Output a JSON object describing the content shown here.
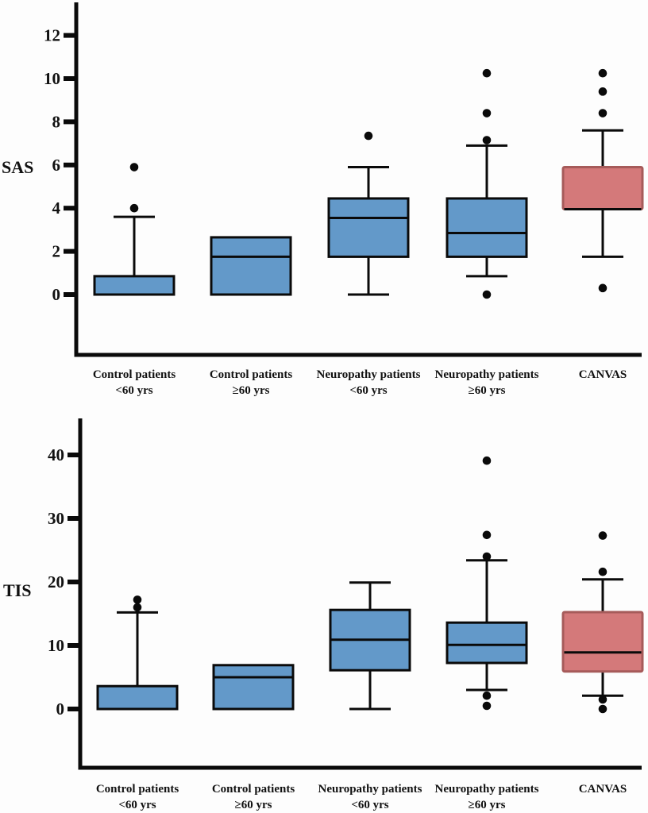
{
  "colors": {
    "control_fill": "#6399c9",
    "canvas_fill": "#d4797a",
    "canvas_stroke": "#a65b5a",
    "line": "#0a0a0a"
  },
  "chart_data": [
    {
      "type": "boxplot",
      "title": "",
      "ylabel": "SAS",
      "xlabel": "",
      "ylim": [
        -2.8,
        13
      ],
      "yticks": [
        0,
        2,
        4,
        6,
        8,
        10,
        12
      ],
      "grid": false,
      "legend": "none",
      "categories": [
        {
          "line1": "Control patients",
          "line2": "<60 yrs"
        },
        {
          "line1": "Control patients",
          "line2": "≥60 yrs"
        },
        {
          "line1": "Neuropathy patients",
          "line2": "<60 yrs"
        },
        {
          "line1": "Neuropathy patients",
          "line2": "≥60 yrs"
        },
        {
          "line1": "CANVAS",
          "line2": ""
        }
      ],
      "series": [
        {
          "name": "Control patients <60 yrs",
          "color": "blue",
          "q1": 0,
          "median": 0,
          "q3": 0.85,
          "whisker_low": null,
          "whisker_high": 3.6,
          "outliers": [
            4.0,
            5.9
          ]
        },
        {
          "name": "Control patients ≥60 yrs",
          "color": "blue",
          "q1": 0,
          "median": 1.75,
          "q3": 2.65,
          "whisker_low": null,
          "whisker_high": null,
          "outliers": []
        },
        {
          "name": "Neuropathy patients <60 yrs",
          "color": "blue",
          "q1": 1.75,
          "median": 3.55,
          "q3": 4.45,
          "whisker_low": 0,
          "whisker_high": 5.9,
          "outliers": [
            7.35
          ]
        },
        {
          "name": "Neuropathy patients ≥60 yrs",
          "color": "blue",
          "q1": 1.75,
          "median": 2.85,
          "q3": 4.45,
          "whisker_low": 0.85,
          "whisker_high": 6.9,
          "outliers": [
            0,
            7.15,
            8.4,
            10.25
          ]
        },
        {
          "name": "CANVAS",
          "color": "red",
          "q1": 3.95,
          "median": 3.95,
          "q3": 5.9,
          "whisker_low": 1.75,
          "whisker_high": 7.6,
          "outliers": [
            0.3,
            8.4,
            9.4,
            10.25
          ]
        }
      ]
    },
    {
      "type": "boxplot",
      "title": "",
      "ylabel": "TIS",
      "xlabel": "",
      "ylim": [
        -9.2,
        46
      ],
      "yticks": [
        0,
        10,
        20,
        30,
        40
      ],
      "grid": false,
      "legend": "none",
      "categories": [
        {
          "line1": "Control patients",
          "line2": "<60 yrs"
        },
        {
          "line1": "Control patients",
          "line2": "≥60 yrs"
        },
        {
          "line1": "Neuropathy patients",
          "line2": "<60 yrs"
        },
        {
          "line1": "Neuropathy patients",
          "line2": "≥60 yrs"
        },
        {
          "line1": "CANVAS",
          "line2": ""
        }
      ],
      "series": [
        {
          "name": "Control patients <60 yrs",
          "color": "blue",
          "q1": 0,
          "median": 0,
          "q3": 3.6,
          "whisker_low": null,
          "whisker_high": 15.2,
          "outliers": [
            16.0,
            17.2
          ]
        },
        {
          "name": "Control patients ≥60 yrs",
          "color": "blue",
          "q1": 0,
          "median": 5.0,
          "q3": 6.9,
          "whisker_low": null,
          "whisker_high": null,
          "outliers": []
        },
        {
          "name": "Neuropathy patients <60 yrs",
          "color": "blue",
          "q1": 6.1,
          "median": 10.9,
          "q3": 15.6,
          "whisker_low": 0,
          "whisker_high": 19.9,
          "outliers": []
        },
        {
          "name": "Neuropathy patients ≥60 yrs",
          "color": "blue",
          "q1": 7.25,
          "median": 10.1,
          "q3": 13.6,
          "whisker_low": 3.0,
          "whisker_high": 23.4,
          "outliers": [
            0.5,
            2.1,
            24.0,
            27.4,
            39.1
          ]
        },
        {
          "name": "CANVAS",
          "color": "red",
          "q1": 5.9,
          "median": 8.9,
          "q3": 15.25,
          "whisker_low": 2.1,
          "whisker_high": 20.4,
          "outliers": [
            0,
            1.5,
            21.6,
            27.3
          ]
        }
      ]
    }
  ]
}
